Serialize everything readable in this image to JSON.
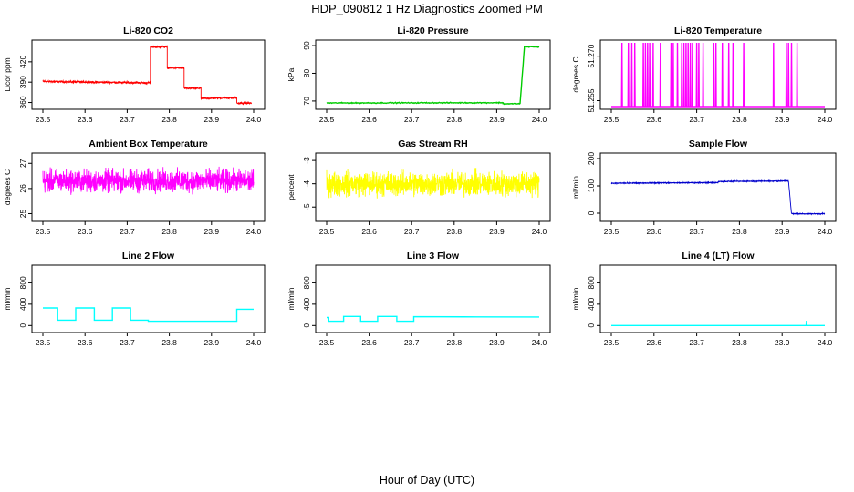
{
  "title": "HDP_090812  1 Hz Diagnostics Zoomed PM",
  "xlabel": "Hour of Day (UTC)",
  "chart_data": [
    {
      "type": "line",
      "title": "Li-820 CO2",
      "ylabel": "Licor ppm",
      "color": "#ff0000",
      "xlim": [
        23.5,
        24.0
      ],
      "ylim": [
        354,
        448
      ],
      "xticks": [
        "23.5",
        "23.6",
        "23.7",
        "23.8",
        "23.9",
        "24.0"
      ],
      "yticks": [
        360,
        390,
        420
      ],
      "noise": 1.2,
      "segments": [
        [
          23.5,
          23.755,
          391,
          389
        ],
        [
          23.755,
          23.795,
          442,
          442
        ],
        [
          23.795,
          23.835,
          411,
          411
        ],
        [
          23.835,
          23.875,
          381,
          381
        ],
        [
          23.875,
          23.96,
          366,
          367
        ],
        [
          23.96,
          23.995,
          359,
          359
        ]
      ],
      "spikes": []
    },
    {
      "type": "line",
      "title": "Li-820 Pressure",
      "ylabel": "kPa",
      "color": "#00cc00",
      "xlim": [
        23.5,
        24.0
      ],
      "ylim": [
        68,
        91
      ],
      "xticks": [
        "23.5",
        "23.6",
        "23.7",
        "23.8",
        "23.9",
        "24.0"
      ],
      "yticks": [
        70,
        80,
        90
      ],
      "noise": 0.15,
      "segments": [
        [
          23.5,
          23.915,
          69.3,
          69.4
        ],
        [
          23.915,
          23.955,
          69.0,
          69.0
        ],
        [
          23.955,
          23.965,
          69.2,
          89.0
        ],
        [
          23.965,
          24.0,
          89.6,
          89.5
        ]
      ],
      "spikes": []
    },
    {
      "type": "line",
      "title": "Li-820 Temperature",
      "ylabel": "degrees C",
      "color": "#ff00ff",
      "xlim": [
        23.5,
        24.0
      ],
      "ylim": [
        51.253,
        51.2745
      ],
      "xticks": [
        "23.5",
        "23.6",
        "23.7",
        "23.8",
        "23.9",
        "24.0"
      ],
      "yticks": [
        51.255,
        51.27
      ],
      "noise": 0,
      "segments": [
        [
          23.5,
          24.0,
          51.253,
          51.253
        ]
      ],
      "spikes": [
        23.525,
        23.54,
        23.548,
        23.555,
        23.575,
        23.58,
        23.585,
        23.59,
        23.598,
        23.615,
        23.64,
        23.645,
        23.655,
        23.665,
        23.67,
        23.675,
        23.68,
        23.685,
        23.69,
        23.7,
        23.705,
        23.715,
        23.74,
        23.745,
        23.76,
        23.775,
        23.785,
        23.81,
        23.88,
        23.91,
        23.915,
        23.922,
        23.935
      ],
      "spike_value": 51.2745
    },
    {
      "type": "line",
      "title": "Ambient Box Temperature",
      "ylabel": "degrees C",
      "color": "#ff00ff",
      "xlim": [
        23.5,
        24.0
      ],
      "ylim": [
        24.8,
        27.3
      ],
      "xticks": [
        "23.5",
        "23.6",
        "23.7",
        "23.8",
        "23.9",
        "24.0"
      ],
      "yticks": [
        25.0,
        26.0,
        27.0
      ],
      "noise": 0.38,
      "segments": [
        [
          23.5,
          24.0,
          26.3,
          26.3
        ]
      ],
      "spikes": []
    },
    {
      "type": "line",
      "title": "Gas Stream RH",
      "ylabel": "percent",
      "color": "#ffff00",
      "xlim": [
        23.5,
        24.0
      ],
      "ylim": [
        -5.5,
        -2.8
      ],
      "xticks": [
        "23.5",
        "23.6",
        "23.7",
        "23.8",
        "23.9",
        "24.0"
      ],
      "yticks": [
        -5.0,
        -4.0,
        -3.0
      ],
      "noise": 0.45,
      "segments": [
        [
          23.5,
          24.0,
          -4.0,
          -4.0
        ]
      ],
      "spikes": []
    },
    {
      "type": "line",
      "title": "Sample Flow",
      "ylabel": "ml/min",
      "color": "#0000cc",
      "xlim": [
        23.5,
        24.0
      ],
      "ylim": [
        -20,
        210
      ],
      "xticks": [
        "23.5",
        "23.6",
        "23.7",
        "23.8",
        "23.9",
        "24.0"
      ],
      "yticks": [
        0,
        100,
        200
      ],
      "noise": 1.5,
      "segments": [
        [
          23.5,
          23.75,
          110,
          112
        ],
        [
          23.75,
          23.915,
          116,
          118
        ],
        [
          23.915,
          23.922,
          117,
          -2
        ],
        [
          23.922,
          24.0,
          -2,
          -2
        ]
      ],
      "spikes": []
    },
    {
      "type": "line",
      "title": "Line 2 Flow",
      "ylabel": "ml/min",
      "color": "#00ffff",
      "xlim": [
        23.5,
        24.0
      ],
      "ylim": [
        -80,
        1080
      ],
      "xticks": [
        "23.5",
        "23.6",
        "23.7",
        "23.8",
        "23.9",
        "24.0"
      ],
      "yticks": [
        0,
        400,
        800
      ],
      "noise": 0,
      "segments": [
        [
          23.5,
          23.535,
          330,
          330
        ],
        [
          23.535,
          23.578,
          100,
          100
        ],
        [
          23.578,
          23.622,
          330,
          330
        ],
        [
          23.622,
          23.665,
          100,
          100
        ],
        [
          23.665,
          23.708,
          330,
          330
        ],
        [
          23.708,
          23.75,
          100,
          100
        ],
        [
          23.75,
          23.96,
          80,
          80
        ],
        [
          23.96,
          24.0,
          305,
          305
        ]
      ],
      "spikes": []
    },
    {
      "type": "line",
      "title": "Line 3 Flow",
      "ylabel": "ml/min",
      "color": "#00ffff",
      "xlim": [
        23.5,
        24.0
      ],
      "ylim": [
        -80,
        1080
      ],
      "xticks": [
        "23.5",
        "23.6",
        "23.7",
        "23.8",
        "23.9",
        "24.0"
      ],
      "yticks": [
        0,
        400,
        800
      ],
      "noise": 0,
      "segments": [
        [
          23.5,
          23.505,
          150,
          150
        ],
        [
          23.505,
          23.54,
          80,
          80
        ],
        [
          23.54,
          23.58,
          170,
          170
        ],
        [
          23.58,
          23.62,
          80,
          80
        ],
        [
          23.62,
          23.665,
          170,
          170
        ],
        [
          23.665,
          23.705,
          80,
          80
        ],
        [
          23.705,
          24.0,
          165,
          160
        ]
      ],
      "spikes": []
    },
    {
      "type": "line",
      "title": "Line 4 (LT) Flow",
      "ylabel": "ml/min",
      "color": "#00ffff",
      "xlim": [
        23.5,
        24.0
      ],
      "ylim": [
        -80,
        1080
      ],
      "xticks": [
        "23.5",
        "23.6",
        "23.7",
        "23.8",
        "23.9",
        "24.0"
      ],
      "yticks": [
        0,
        400,
        800
      ],
      "noise": 0,
      "segments": [
        [
          23.5,
          24.0,
          0,
          0
        ]
      ],
      "spikes": [
        23.957
      ],
      "spike_value": 90
    }
  ]
}
